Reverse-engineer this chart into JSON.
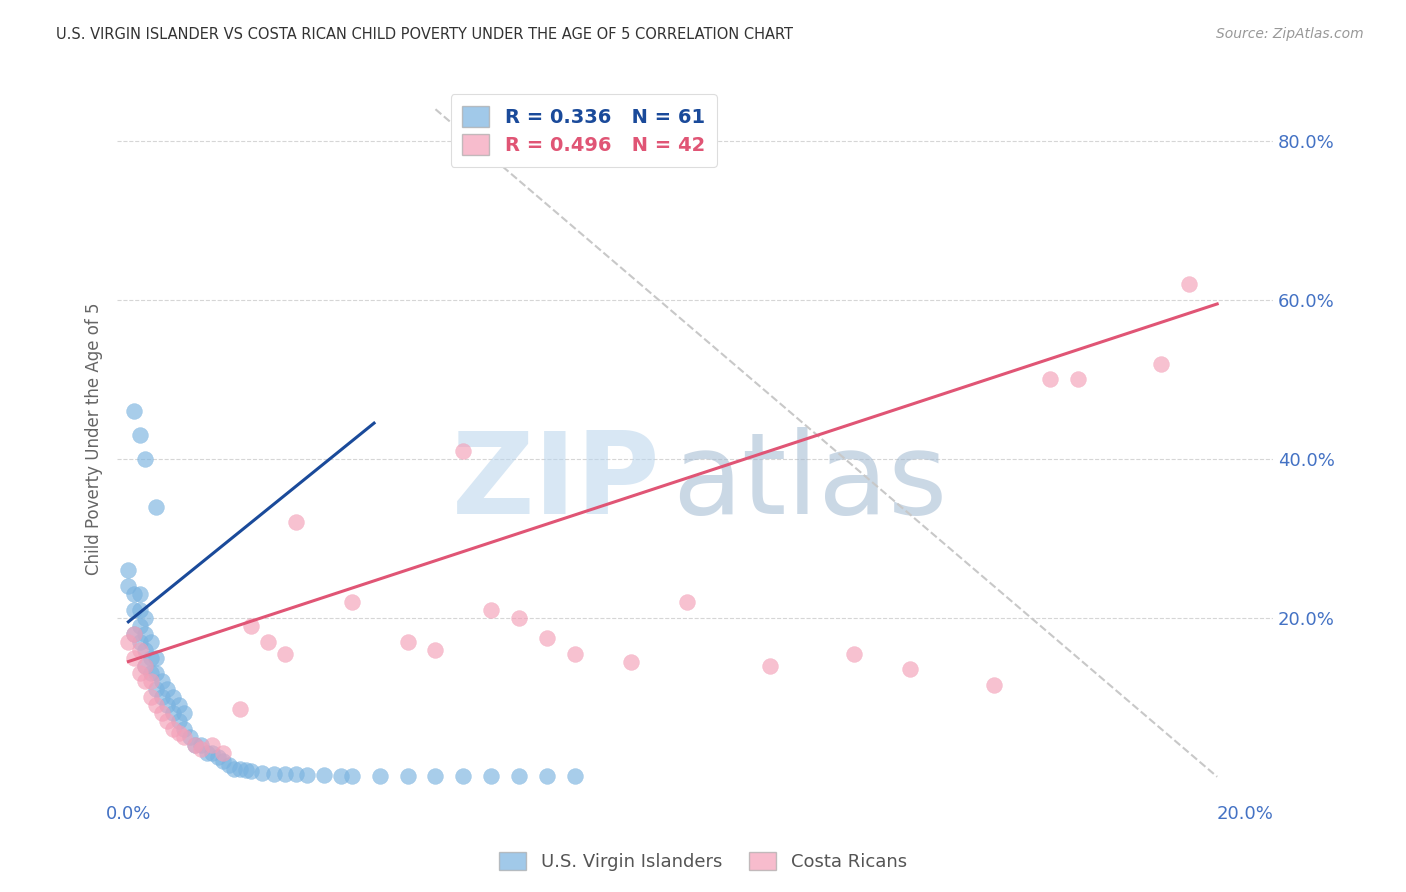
{
  "title": "U.S. VIRGIN ISLANDER VS COSTA RICAN CHILD POVERTY UNDER THE AGE OF 5 CORRELATION CHART",
  "source": "Source: ZipAtlas.com",
  "ylabel": "Child Poverty Under the Age of 5",
  "xlim": [
    -0.002,
    0.205
  ],
  "ylim": [
    -0.03,
    0.88
  ],
  "ytick_labels": [
    "20.0%",
    "40.0%",
    "60.0%",
    "80.0%"
  ],
  "ytick_values": [
    0.2,
    0.4,
    0.6,
    0.8
  ],
  "xtick_labels_show": [
    "0.0%",
    "20.0%"
  ],
  "xtick_values_show": [
    0.0,
    0.2
  ],
  "watermark_zip": "ZIP",
  "watermark_atlas": "atlas",
  "background_color": "#ffffff",
  "grid_color": "#cccccc",
  "title_color": "#333333",
  "tick_label_color": "#4472c4",
  "blue_color": "#7ab3e0",
  "pink_color": "#f4a0b8",
  "ref_line_color": "#c8c8c8",
  "blue_trend_color": "#1a4a9a",
  "pink_trend_color": "#e05575",
  "blue_scatter_x": [
    0.0,
    0.0,
    0.001,
    0.001,
    0.001,
    0.002,
    0.002,
    0.002,
    0.002,
    0.003,
    0.003,
    0.003,
    0.003,
    0.004,
    0.004,
    0.004,
    0.005,
    0.005,
    0.005,
    0.006,
    0.006,
    0.007,
    0.007,
    0.008,
    0.008,
    0.009,
    0.009,
    0.01,
    0.01,
    0.011,
    0.012,
    0.013,
    0.014,
    0.015,
    0.016,
    0.017,
    0.018,
    0.019,
    0.02,
    0.021,
    0.022,
    0.024,
    0.026,
    0.028,
    0.03,
    0.032,
    0.035,
    0.038,
    0.04,
    0.045,
    0.05,
    0.055,
    0.06,
    0.065,
    0.07,
    0.075,
    0.08,
    0.001,
    0.002,
    0.003,
    0.005
  ],
  "blue_scatter_y": [
    0.24,
    0.26,
    0.18,
    0.21,
    0.23,
    0.17,
    0.19,
    0.21,
    0.23,
    0.14,
    0.16,
    0.18,
    0.2,
    0.13,
    0.15,
    0.17,
    0.11,
    0.13,
    0.15,
    0.1,
    0.12,
    0.09,
    0.11,
    0.08,
    0.1,
    0.07,
    0.09,
    0.06,
    0.08,
    0.05,
    0.04,
    0.04,
    0.03,
    0.03,
    0.025,
    0.02,
    0.015,
    0.01,
    0.01,
    0.008,
    0.007,
    0.005,
    0.004,
    0.003,
    0.003,
    0.002,
    0.002,
    0.001,
    0.001,
    0.001,
    0.001,
    0.001,
    0.001,
    0.001,
    0.001,
    0.001,
    0.001,
    0.46,
    0.43,
    0.4,
    0.34
  ],
  "pink_scatter_x": [
    0.0,
    0.001,
    0.001,
    0.002,
    0.002,
    0.003,
    0.003,
    0.004,
    0.004,
    0.005,
    0.006,
    0.007,
    0.008,
    0.009,
    0.01,
    0.012,
    0.013,
    0.015,
    0.017,
    0.02,
    0.022,
    0.025,
    0.028,
    0.03,
    0.04,
    0.05,
    0.055,
    0.06,
    0.065,
    0.07,
    0.075,
    0.08,
    0.09,
    0.1,
    0.115,
    0.13,
    0.14,
    0.155,
    0.165,
    0.17,
    0.185,
    0.19
  ],
  "pink_scatter_y": [
    0.17,
    0.15,
    0.18,
    0.13,
    0.16,
    0.12,
    0.14,
    0.1,
    0.12,
    0.09,
    0.08,
    0.07,
    0.06,
    0.055,
    0.05,
    0.04,
    0.035,
    0.04,
    0.03,
    0.085,
    0.19,
    0.17,
    0.155,
    0.32,
    0.22,
    0.17,
    0.16,
    0.41,
    0.21,
    0.2,
    0.175,
    0.155,
    0.145,
    0.22,
    0.14,
    0.155,
    0.135,
    0.115,
    0.5,
    0.5,
    0.52,
    0.62
  ],
  "blue_line_x": [
    0.0,
    0.044
  ],
  "blue_line_y": [
    0.195,
    0.445
  ],
  "pink_line_x": [
    0.0,
    0.195
  ],
  "pink_line_y": [
    0.145,
    0.595
  ],
  "ref_line_x": [
    0.055,
    0.195
  ],
  "ref_line_y": [
    0.84,
    0.0
  ]
}
